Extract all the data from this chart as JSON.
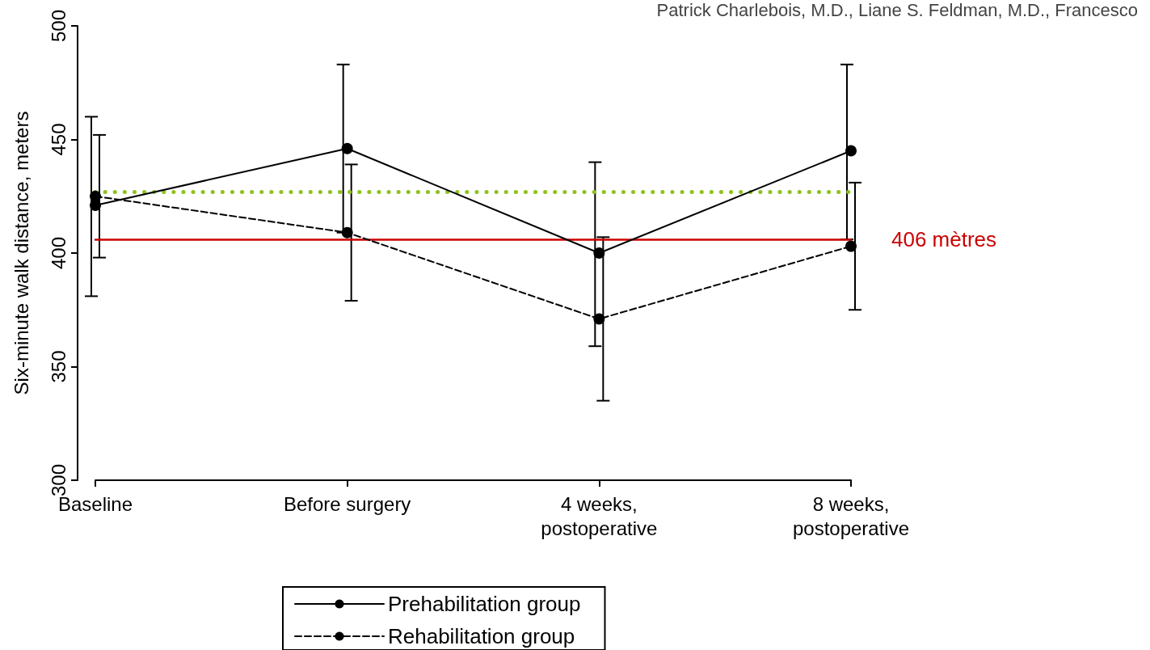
{
  "chart_data": {
    "type": "line",
    "ylabel": "Six-minute walk distance, meters",
    "categories": [
      "Baseline",
      "Before surgery",
      "4 weeks,\npostoperative",
      "8 weeks,\npostoperative"
    ],
    "series": [
      {
        "name": "Prehabilitation group",
        "color": "#000000",
        "line_style": "solid",
        "values": [
          421,
          446,
          400,
          445
        ],
        "errors": [
          [
            381,
            460
          ],
          [
            409,
            483
          ],
          [
            359,
            440
          ],
          [
            406,
            483
          ]
        ]
      },
      {
        "name": "Rehabilitation group",
        "color": "#000000",
        "line_style": "dashed",
        "values": [
          425,
          409,
          371,
          403
        ],
        "errors": [
          [
            398,
            452
          ],
          [
            379,
            439
          ],
          [
            335,
            407
          ],
          [
            375,
            431
          ]
        ]
      }
    ],
    "ylim": [
      300,
      500
    ],
    "yticks": [
      300,
      350,
      400,
      450,
      500
    ],
    "grid": false,
    "legend": "bottom",
    "marker": "circle",
    "ref_lines": [
      {
        "axis": "y",
        "value": 406,
        "label": "406 mètres",
        "color": "#cc0000",
        "line_style": "solid"
      },
      {
        "axis": "y",
        "value": 427,
        "color": "#8dc21f",
        "line_style": "dotted"
      }
    ],
    "annotations": [
      "Patrick Charlebois, M.D., Liane S. Feldman, M.D., Francesco"
    ]
  }
}
